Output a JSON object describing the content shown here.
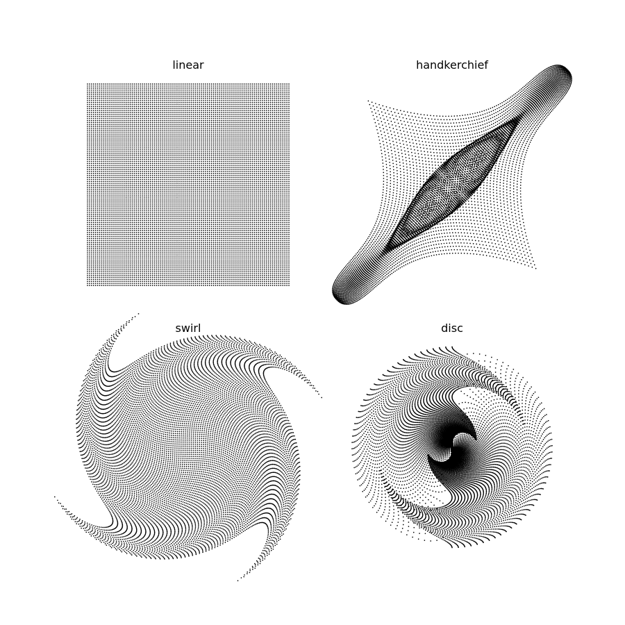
{
  "chart_data": [
    {
      "type": "scatter",
      "title": "linear",
      "variation": "linear",
      "grid_points": 100,
      "input_range": [
        -1,
        1
      ],
      "xlim": [
        -1,
        1
      ],
      "ylim": [
        -1,
        1
      ],
      "axes": "off",
      "color": "#000000"
    },
    {
      "type": "scatter",
      "title": "handkerchief",
      "variation": "handkerchief",
      "grid_points": 100,
      "input_range": [
        -1,
        1
      ],
      "xlim": [
        -1.0,
        1.0
      ],
      "ylim": [
        -1.0,
        1.0
      ],
      "axes": "off",
      "color": "#000000"
    },
    {
      "type": "scatter",
      "title": "swirl",
      "variation": "swirl",
      "grid_points": 100,
      "input_range": [
        -1,
        1
      ],
      "xlim": [
        -1.0,
        1.0
      ],
      "ylim": [
        -1.0,
        1.0
      ],
      "axes": "off",
      "color": "#000000"
    },
    {
      "type": "scatter",
      "title": "disc",
      "variation": "disc",
      "grid_points": 100,
      "input_range": [
        -1,
        1
      ],
      "xlim": [
        -1.0,
        1.0
      ],
      "ylim": [
        -1.0,
        1.0
      ],
      "axes": "off",
      "color": "#000000"
    }
  ]
}
